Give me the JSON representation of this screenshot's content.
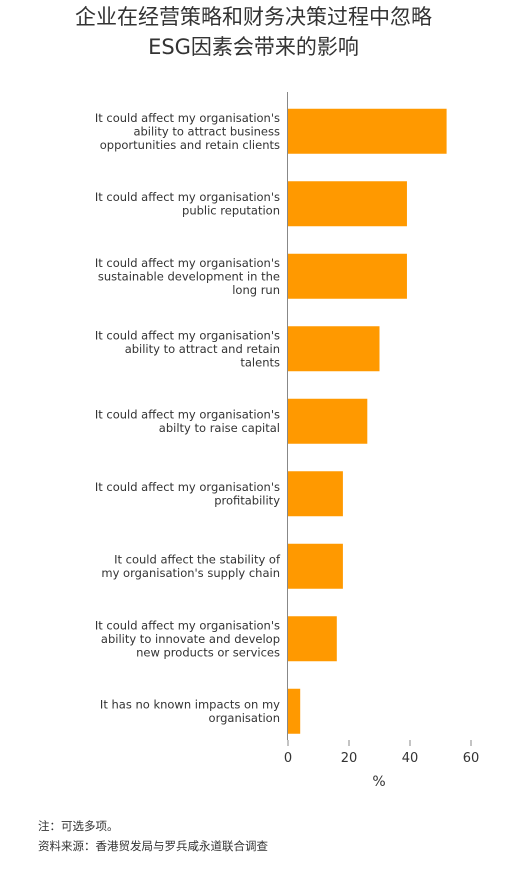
{
  "title_lines": [
    "企业在经营策略和财务决策过程中忽略",
    "ESG因素会带来的影响"
  ],
  "chart_data": {
    "type": "bar",
    "orientation": "horizontal",
    "categories": [
      [
        "It could affect my organisation's",
        "ability to attract business",
        "opportunities and retain clients"
      ],
      [
        "It could affect my organisation's",
        "public reputation"
      ],
      [
        "It could affect my organisation's",
        "sustainable development in the",
        "long run"
      ],
      [
        "It could affect my organisation's",
        "ability to attract and retain",
        "talents"
      ],
      [
        "It could affect my organisation's",
        "abilty to raise capital"
      ],
      [
        "It could affect my organisation's",
        "profitability"
      ],
      [
        "It could affect the stability of",
        "my organisation's supply chain"
      ],
      [
        "It could affect my organisation's",
        "ability to innovate and develop",
        "new products or services"
      ],
      [
        "It has no known impacts on my",
        "organisation"
      ]
    ],
    "values": [
      52,
      39,
      39,
      30,
      26,
      18,
      18,
      16,
      4
    ],
    "xlabel": "%",
    "xlim": [
      0,
      60
    ],
    "xticks": [
      0,
      20,
      40,
      60
    ],
    "grid": false,
    "bar_color": "#FF9900"
  },
  "footnotes": {
    "note": "注：可选多项。",
    "source": "资料来源：香港贸发局与罗兵咸永道联合调查"
  }
}
